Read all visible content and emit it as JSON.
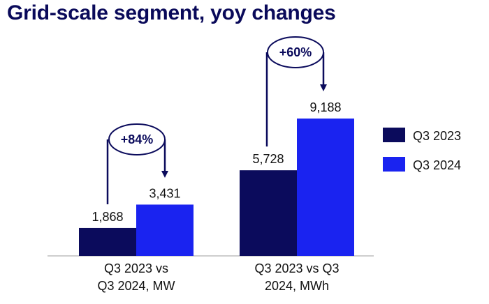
{
  "title": "Grid-scale segment, yoy changes",
  "colors": {
    "q3_2023": "#0b0b5c",
    "q3_2024": "#1a23f0",
    "arrow": "#0b0b5c"
  },
  "chart_data": {
    "type": "bar",
    "title": "Grid-scale segment, yoy changes",
    "categories": [
      [
        "Q3 2023 vs",
        "Q3 2024, MW"
      ],
      [
        "Q3 2023 vs Q3",
        "2024, MWh"
      ]
    ],
    "series": [
      {
        "name": "Q3 2023",
        "values": [
          1868,
          5728
        ],
        "labels": [
          "1,868",
          "5,728"
        ]
      },
      {
        "name": "Q3 2024",
        "values": [
          3431,
          9188
        ],
        "labels": [
          "3,431",
          "9,188"
        ]
      }
    ],
    "annotations": [
      "+84%",
      "+60%"
    ],
    "legend_position": "right"
  }
}
